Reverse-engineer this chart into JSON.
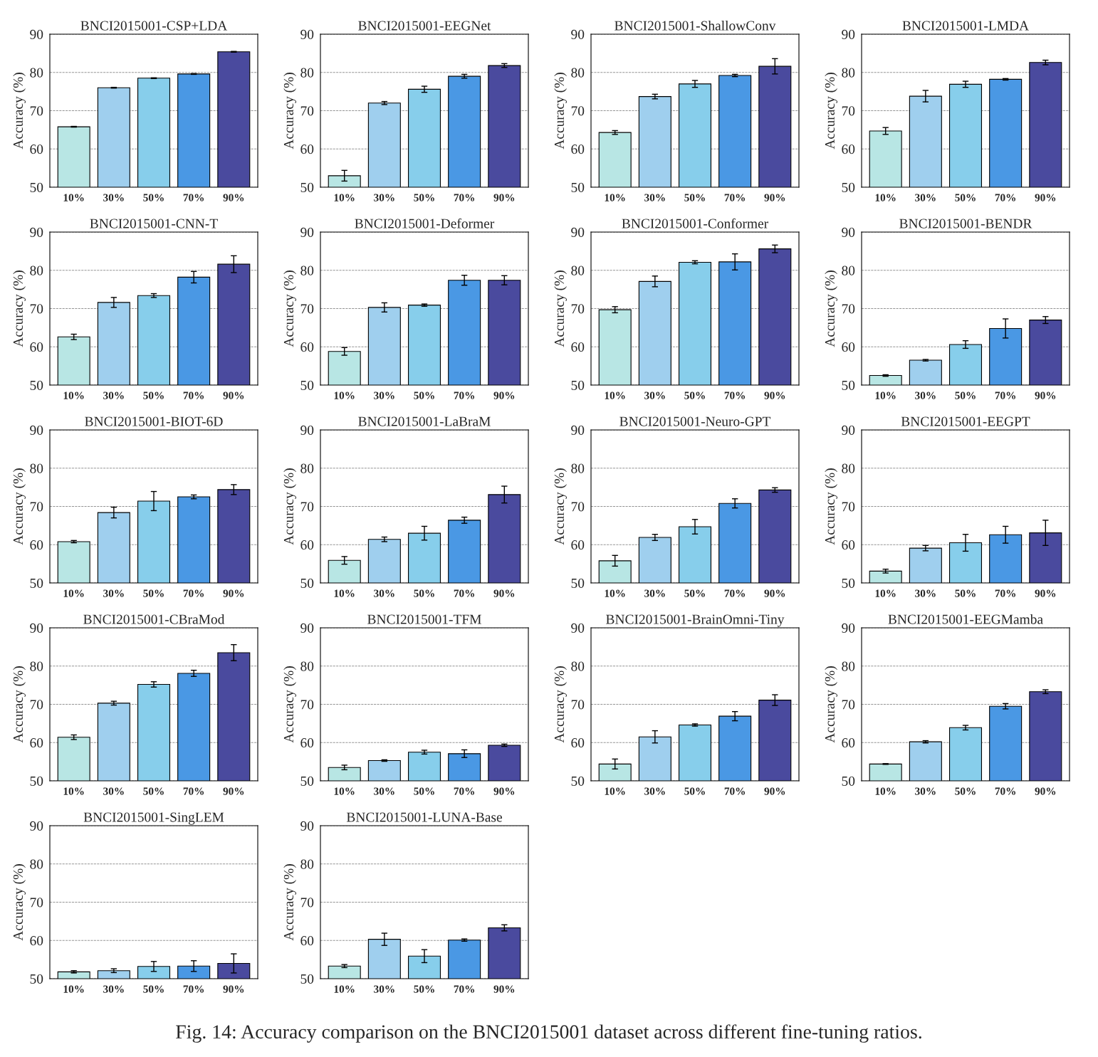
{
  "chart_data": [
    {
      "type": "bar",
      "title": "BNCI2015001-CSP+LDA",
      "ylabel": "Accuracy (%)",
      "categories": [
        "10%",
        "30%",
        "50%",
        "70%",
        "90%"
      ],
      "values": [
        65.8,
        76.0,
        78.5,
        79.6,
        85.4
      ],
      "errors": [
        0.1,
        0.1,
        0.1,
        0.1,
        0.1
      ],
      "colors": [
        "#b8e6e4",
        "#9fcfee",
        "#87ceeb",
        "#4a98e4",
        "#4a4a9e"
      ],
      "ylim": [
        50,
        90
      ],
      "yticks": [
        50,
        60,
        70,
        80,
        90
      ],
      "grid": "y"
    },
    {
      "type": "bar",
      "title": "BNCI2015001-EEGNet",
      "ylabel": "Accuracy (%)",
      "categories": [
        "10%",
        "30%",
        "50%",
        "70%",
        "90%"
      ],
      "values": [
        53.0,
        72.0,
        75.6,
        79.0,
        81.8
      ],
      "errors": [
        1.4,
        0.4,
        0.8,
        0.5,
        0.5
      ],
      "colors": [
        "#b8e6e4",
        "#9fcfee",
        "#87ceeb",
        "#4a98e4",
        "#4a4a9e"
      ],
      "ylim": [
        50,
        90
      ],
      "yticks": [
        50,
        60,
        70,
        80,
        90
      ],
      "grid": "y"
    },
    {
      "type": "bar",
      "title": "BNCI2015001-ShallowConv",
      "ylabel": "Accuracy (%)",
      "categories": [
        "10%",
        "30%",
        "50%",
        "70%",
        "90%"
      ],
      "values": [
        64.3,
        73.7,
        77.0,
        79.2,
        81.6
      ],
      "errors": [
        0.5,
        0.6,
        0.9,
        0.3,
        2.0
      ],
      "colors": [
        "#b8e6e4",
        "#9fcfee",
        "#87ceeb",
        "#4a98e4",
        "#4a4a9e"
      ],
      "ylim": [
        50,
        90
      ],
      "yticks": [
        50,
        60,
        70,
        80,
        90
      ],
      "grid": "y"
    },
    {
      "type": "bar",
      "title": "BNCI2015001-LMDA",
      "ylabel": "Accuracy (%)",
      "categories": [
        "10%",
        "30%",
        "50%",
        "70%",
        "90%"
      ],
      "values": [
        64.7,
        73.8,
        76.9,
        78.2,
        82.6
      ],
      "errors": [
        0.9,
        1.5,
        0.8,
        0.2,
        0.6
      ],
      "colors": [
        "#b8e6e4",
        "#9fcfee",
        "#87ceeb",
        "#4a98e4",
        "#4a4a9e"
      ],
      "ylim": [
        50,
        90
      ],
      "yticks": [
        50,
        60,
        70,
        80,
        90
      ],
      "grid": "y"
    },
    {
      "type": "bar",
      "title": "BNCI2015001-CNN-T",
      "ylabel": "Accuracy (%)",
      "categories": [
        "10%",
        "30%",
        "50%",
        "70%",
        "90%"
      ],
      "values": [
        62.6,
        71.6,
        73.4,
        78.2,
        81.6
      ],
      "errors": [
        0.7,
        1.3,
        0.5,
        1.5,
        2.2
      ],
      "colors": [
        "#b8e6e4",
        "#9fcfee",
        "#87ceeb",
        "#4a98e4",
        "#4a4a9e"
      ],
      "ylim": [
        50,
        90
      ],
      "yticks": [
        50,
        60,
        70,
        80,
        90
      ],
      "grid": "y"
    },
    {
      "type": "bar",
      "title": "BNCI2015001-Deformer",
      "ylabel": "Accuracy (%)",
      "categories": [
        "10%",
        "30%",
        "50%",
        "70%",
        "90%"
      ],
      "values": [
        58.8,
        70.3,
        70.9,
        77.4,
        77.4
      ],
      "errors": [
        1.0,
        1.2,
        0.3,
        1.3,
        1.2
      ],
      "colors": [
        "#b8e6e4",
        "#9fcfee",
        "#87ceeb",
        "#4a98e4",
        "#4a4a9e"
      ],
      "ylim": [
        50,
        90
      ],
      "yticks": [
        50,
        60,
        70,
        80,
        90
      ],
      "grid": "y"
    },
    {
      "type": "bar",
      "title": "BNCI2015001-Conformer",
      "ylabel": "Accuracy (%)",
      "categories": [
        "10%",
        "30%",
        "50%",
        "70%",
        "90%"
      ],
      "values": [
        69.7,
        77.1,
        82.1,
        82.2,
        85.6
      ],
      "errors": [
        0.8,
        1.4,
        0.4,
        2.1,
        1.0
      ],
      "colors": [
        "#b8e6e4",
        "#9fcfee",
        "#87ceeb",
        "#4a98e4",
        "#4a4a9e"
      ],
      "ylim": [
        50,
        90
      ],
      "yticks": [
        50,
        60,
        70,
        80,
        90
      ],
      "grid": "y"
    },
    {
      "type": "bar",
      "title": "BNCI2015001-BENDR",
      "ylabel": "Accuracy (%)",
      "categories": [
        "10%",
        "30%",
        "50%",
        "70%",
        "90%"
      ],
      "values": [
        52.5,
        56.5,
        60.6,
        64.8,
        67.0
      ],
      "errors": [
        0.2,
        0.2,
        1.0,
        2.5,
        0.9
      ],
      "colors": [
        "#b8e6e4",
        "#9fcfee",
        "#87ceeb",
        "#4a98e4",
        "#4a4a9e"
      ],
      "ylim": [
        50,
        90
      ],
      "yticks": [
        50,
        60,
        70,
        80,
        90
      ],
      "grid": "y"
    },
    {
      "type": "bar",
      "title": "BNCI2015001-BIOT-6D",
      "ylabel": "Accuracy (%)",
      "categories": [
        "10%",
        "30%",
        "50%",
        "70%",
        "90%"
      ],
      "values": [
        60.8,
        68.4,
        71.4,
        72.5,
        74.4
      ],
      "errors": [
        0.3,
        1.4,
        2.5,
        0.5,
        1.3
      ],
      "colors": [
        "#b8e6e4",
        "#9fcfee",
        "#87ceeb",
        "#4a98e4",
        "#4a4a9e"
      ],
      "ylim": [
        50,
        90
      ],
      "yticks": [
        50,
        60,
        70,
        80,
        90
      ],
      "grid": "y"
    },
    {
      "type": "bar",
      "title": "BNCI2015001-LaBraM",
      "ylabel": "Accuracy (%)",
      "categories": [
        "10%",
        "30%",
        "50%",
        "70%",
        "90%"
      ],
      "values": [
        55.9,
        61.4,
        63.0,
        66.4,
        73.1
      ],
      "errors": [
        1.0,
        0.6,
        1.8,
        0.8,
        2.2
      ],
      "colors": [
        "#b8e6e4",
        "#9fcfee",
        "#87ceeb",
        "#4a98e4",
        "#4a4a9e"
      ],
      "ylim": [
        50,
        90
      ],
      "yticks": [
        50,
        60,
        70,
        80,
        90
      ],
      "grid": "y"
    },
    {
      "type": "bar",
      "title": "BNCI2015001-Neuro-GPT",
      "ylabel": "Accuracy (%)",
      "categories": [
        "10%",
        "30%",
        "50%",
        "70%",
        "90%"
      ],
      "values": [
        55.8,
        61.9,
        64.7,
        70.8,
        74.3
      ],
      "errors": [
        1.4,
        0.8,
        1.9,
        1.2,
        0.6
      ],
      "colors": [
        "#b8e6e4",
        "#9fcfee",
        "#87ceeb",
        "#4a98e4",
        "#4a4a9e"
      ],
      "ylim": [
        50,
        90
      ],
      "yticks": [
        50,
        60,
        70,
        80,
        90
      ],
      "grid": "y"
    },
    {
      "type": "bar",
      "title": "BNCI2015001-EEGPT",
      "ylabel": "Accuracy (%)",
      "categories": [
        "10%",
        "30%",
        "50%",
        "70%",
        "90%"
      ],
      "values": [
        53.1,
        59.1,
        60.5,
        62.6,
        63.1
      ],
      "errors": [
        0.5,
        0.7,
        2.2,
        2.2,
        3.3
      ],
      "colors": [
        "#b8e6e4",
        "#9fcfee",
        "#87ceeb",
        "#4a98e4",
        "#4a4a9e"
      ],
      "ylim": [
        50,
        90
      ],
      "yticks": [
        50,
        60,
        70,
        80,
        90
      ],
      "grid": "y"
    },
    {
      "type": "bar",
      "title": "BNCI2015001-CBraMod",
      "ylabel": "Accuracy (%)",
      "categories": [
        "10%",
        "30%",
        "50%",
        "70%",
        "90%"
      ],
      "values": [
        61.4,
        70.3,
        75.2,
        78.1,
        83.5
      ],
      "errors": [
        0.6,
        0.5,
        0.7,
        0.8,
        2.1
      ],
      "colors": [
        "#b8e6e4",
        "#9fcfee",
        "#87ceeb",
        "#4a98e4",
        "#4a4a9e"
      ],
      "ylim": [
        50,
        90
      ],
      "yticks": [
        50,
        60,
        70,
        80,
        90
      ],
      "grid": "y"
    },
    {
      "type": "bar",
      "title": "BNCI2015001-TFM",
      "ylabel": "Accuracy (%)",
      "categories": [
        "10%",
        "30%",
        "50%",
        "70%",
        "90%"
      ],
      "values": [
        53.5,
        55.3,
        57.5,
        57.1,
        59.3
      ],
      "errors": [
        0.6,
        0.2,
        0.5,
        1.0,
        0.3
      ],
      "colors": [
        "#b8e6e4",
        "#9fcfee",
        "#87ceeb",
        "#4a98e4",
        "#4a4a9e"
      ],
      "ylim": [
        50,
        90
      ],
      "yticks": [
        50,
        60,
        70,
        80,
        90
      ],
      "grid": "y"
    },
    {
      "type": "bar",
      "title": "BNCI2015001-BrainOmni-Tiny",
      "ylabel": "Accuracy (%)",
      "categories": [
        "10%",
        "30%",
        "50%",
        "70%",
        "90%"
      ],
      "values": [
        54.4,
        61.5,
        64.6,
        66.9,
        71.1
      ],
      "errors": [
        1.3,
        1.6,
        0.3,
        1.2,
        1.4
      ],
      "colors": [
        "#b8e6e4",
        "#9fcfee",
        "#87ceeb",
        "#4a98e4",
        "#4a4a9e"
      ],
      "ylim": [
        50,
        90
      ],
      "yticks": [
        50,
        60,
        70,
        80,
        90
      ],
      "grid": "y"
    },
    {
      "type": "bar",
      "title": "BNCI2015001-EEGMamba",
      "ylabel": "Accuracy (%)",
      "categories": [
        "10%",
        "30%",
        "50%",
        "70%",
        "90%"
      ],
      "values": [
        54.4,
        60.2,
        63.9,
        69.5,
        73.3
      ],
      "errors": [
        0.1,
        0.3,
        0.6,
        0.7,
        0.5
      ],
      "colors": [
        "#b8e6e4",
        "#9fcfee",
        "#87ceeb",
        "#4a98e4",
        "#4a4a9e"
      ],
      "ylim": [
        50,
        90
      ],
      "yticks": [
        50,
        60,
        70,
        80,
        90
      ],
      "grid": "y"
    },
    {
      "type": "bar",
      "title": "BNCI2015001-SingLEM",
      "ylabel": "Accuracy (%)",
      "categories": [
        "10%",
        "30%",
        "50%",
        "70%",
        "90%"
      ],
      "values": [
        51.8,
        52.1,
        53.2,
        53.3,
        54.0
      ],
      "errors": [
        0.3,
        0.5,
        1.3,
        1.4,
        2.5
      ],
      "colors": [
        "#b8e6e4",
        "#9fcfee",
        "#87ceeb",
        "#4a98e4",
        "#4a4a9e"
      ],
      "ylim": [
        50,
        90
      ],
      "yticks": [
        50,
        60,
        70,
        80,
        90
      ],
      "grid": "y"
    },
    {
      "type": "bar",
      "title": "BNCI2015001-LUNA-Base",
      "ylabel": "Accuracy (%)",
      "categories": [
        "10%",
        "30%",
        "50%",
        "70%",
        "90%"
      ],
      "values": [
        53.3,
        60.3,
        55.9,
        60.1,
        63.3
      ],
      "errors": [
        0.4,
        1.6,
        1.7,
        0.3,
        0.8
      ],
      "colors": [
        "#b8e6e4",
        "#9fcfee",
        "#87ceeb",
        "#4a98e4",
        "#4a4a9e"
      ],
      "ylim": [
        50,
        90
      ],
      "yticks": [
        50,
        60,
        70,
        80,
        90
      ],
      "grid": "y",
      "annotations": [
        "Fig. 14: Accuracy comparison on the BNCI2015001 dataset across different fine-tuning ratios."
      ]
    }
  ]
}
